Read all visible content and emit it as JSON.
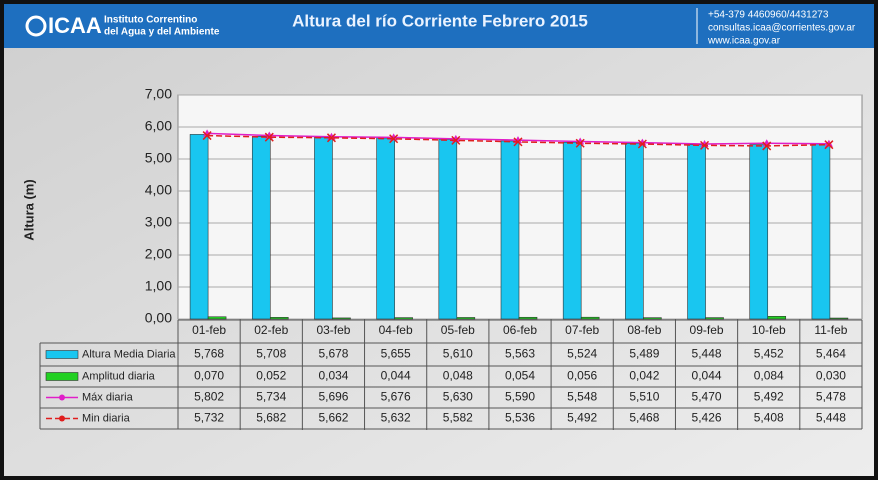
{
  "header": {
    "logo": "ICAA",
    "org_line1": "Instituto Correntino",
    "org_line2": "del Agua y del Ambiente",
    "contact": [
      "+54-379 4460960/4431273",
      "consultas.icaa@corrientes.gov.ar",
      "www.icaa.gov.ar"
    ]
  },
  "chart_data": {
    "type": "bar",
    "title": "Altura del río Corriente Febrero 2015",
    "y_label": "Altura (m)",
    "categories": [
      "01-feb",
      "02-feb",
      "03-feb",
      "04-feb",
      "05-feb",
      "06-feb",
      "07-feb",
      "08-feb",
      "09-feb",
      "10-feb",
      "11-feb"
    ],
    "ylim": [
      0,
      7
    ],
    "yticks": [
      {
        "value": 0,
        "label": "0,00"
      },
      {
        "value": 1,
        "label": "1,00"
      },
      {
        "value": 2,
        "label": "2,00"
      },
      {
        "value": 3,
        "label": "3,00"
      },
      {
        "value": 4,
        "label": "4,00"
      },
      {
        "value": 5,
        "label": "5,00"
      },
      {
        "value": 6,
        "label": "6,00"
      },
      {
        "value": 7,
        "label": "7,00"
      }
    ],
    "grid": true,
    "series": [
      {
        "name": "Altura Media Diaria",
        "kind": "bar",
        "color": "#19c6f0",
        "values": [
          5.768,
          5.708,
          5.678,
          5.655,
          5.61,
          5.563,
          5.524,
          5.489,
          5.448,
          5.452,
          5.464
        ],
        "value_labels": [
          "5,768",
          "5,708",
          "5,678",
          "5,655",
          "5,610",
          "5,563",
          "5,524",
          "5,489",
          "5,448",
          "5,452",
          "5,464"
        ]
      },
      {
        "name": "Amplitud diaria",
        "kind": "bar",
        "color": "#22d022",
        "values": [
          0.07,
          0.052,
          0.034,
          0.044,
          0.048,
          0.054,
          0.056,
          0.042,
          0.044,
          0.084,
          0.03
        ],
        "value_labels": [
          "0,070",
          "0,052",
          "0,034",
          "0,044",
          "0,048",
          "0,054",
          "0,056",
          "0,042",
          "0,044",
          "0,084",
          "0,030"
        ]
      },
      {
        "name": "Máx diaria",
        "kind": "line",
        "color": "#e01ec8",
        "values": [
          5.802,
          5.734,
          5.696,
          5.676,
          5.63,
          5.59,
          5.548,
          5.51,
          5.47,
          5.492,
          5.478
        ],
        "value_labels": [
          "5,802",
          "5,734",
          "5,696",
          "5,676",
          "5,630",
          "5,590",
          "5,548",
          "5,510",
          "5,470",
          "5,492",
          "5,478"
        ]
      },
      {
        "name": "Min diaria",
        "kind": "dashline",
        "color": "#e01e1e",
        "values": [
          5.732,
          5.682,
          5.662,
          5.632,
          5.582,
          5.536,
          5.492,
          5.468,
          5.426,
          5.408,
          5.448
        ],
        "value_labels": [
          "5,732",
          "5,682",
          "5,662",
          "5,632",
          "5,582",
          "5,536",
          "5,492",
          "5,468",
          "5,426",
          "5,408",
          "5,448"
        ]
      }
    ]
  }
}
